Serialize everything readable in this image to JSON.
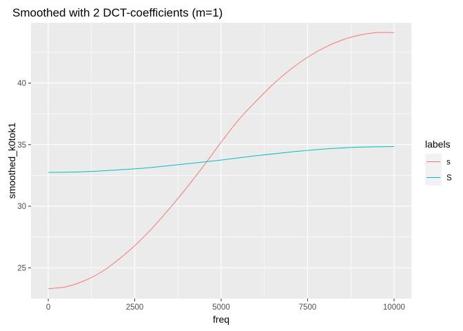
{
  "chart_data": {
    "type": "line",
    "title": "Smoothed with 2 DCT-coefficients (m=1)",
    "xlabel": "freq",
    "ylabel": "smoothed_k0tok1",
    "xlim": [
      -500,
      10500
    ],
    "ylim": [
      22.5,
      44.9
    ],
    "x_ticks": [
      0,
      2500,
      5000,
      7500,
      10000
    ],
    "x_tick_labels": [
      "0",
      "2500",
      "5000",
      "7500",
      "10000"
    ],
    "y_ticks": [
      25,
      30,
      35,
      40
    ],
    "y_tick_labels": [
      "25",
      "30",
      "35",
      "40"
    ],
    "grid": true,
    "background": "#ebebeb",
    "gridline_color": "#ffffff",
    "legend": {
      "title": "labels",
      "position": "right",
      "entries": [
        {
          "label": "s",
          "color": "#f8766d"
        },
        {
          "label": "S",
          "color": "#00bfc4"
        }
      ]
    },
    "series": [
      {
        "name": "s",
        "color": "#f8766d",
        "x": [
          0,
          500,
          1000,
          1500,
          2000,
          2500,
          3000,
          3500,
          4000,
          4500,
          5000,
          5500,
          6000,
          6500,
          7000,
          7500,
          8000,
          8500,
          9000,
          9500,
          10000
        ],
        "values": [
          23.3,
          23.45,
          23.9,
          24.6,
          25.6,
          26.8,
          28.2,
          29.8,
          31.5,
          33.3,
          35.2,
          37.0,
          38.5,
          39.9,
          41.1,
          42.1,
          42.9,
          43.5,
          43.9,
          44.1,
          44.1
        ]
      },
      {
        "name": "S",
        "color": "#00bfc4",
        "x": [
          0,
          1000,
          2000,
          3000,
          4000,
          5000,
          6000,
          7000,
          8000,
          9000,
          10000
        ],
        "values": [
          32.75,
          32.8,
          32.95,
          33.15,
          33.45,
          33.75,
          34.1,
          34.4,
          34.65,
          34.8,
          34.85
        ]
      }
    ]
  }
}
